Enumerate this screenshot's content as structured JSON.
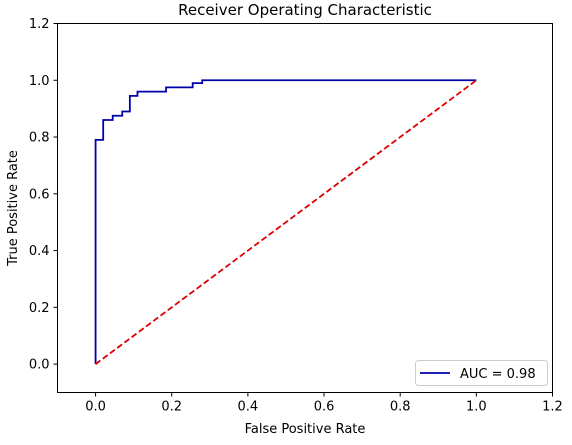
{
  "chart_data": {
    "type": "line",
    "title": "Receiver Operating Characteristic",
    "xlabel": "False Positive Rate",
    "ylabel": "True Positive Rate",
    "xlim": [
      -0.1,
      1.2
    ],
    "ylim": [
      -0.1,
      1.2
    ],
    "xticks": [
      0.0,
      0.2,
      0.4,
      0.6,
      0.8,
      1.0,
      1.2
    ],
    "yticks": [
      0.0,
      0.2,
      0.4,
      0.6,
      0.8,
      1.0,
      1.2
    ],
    "xtick_labels": [
      "0.0",
      "0.2",
      "0.4",
      "0.6",
      "0.8",
      "1.0",
      "1.2"
    ],
    "ytick_labels": [
      "0.0",
      "0.2",
      "0.4",
      "0.6",
      "0.8",
      "1.0",
      "1.2"
    ],
    "grid": false,
    "legend_position": "lower-right",
    "series": [
      {
        "name": "AUC = 0.98",
        "color": "#0000aa",
        "style": "solid",
        "step": true,
        "x": [
          0.0,
          0.0,
          0.02,
          0.02,
          0.045,
          0.045,
          0.07,
          0.07,
          0.09,
          0.09,
          0.11,
          0.11,
          0.185,
          0.185,
          0.255,
          0.255,
          0.28,
          0.28,
          1.0
        ],
        "y": [
          0.0,
          0.79,
          0.79,
          0.86,
          0.86,
          0.875,
          0.875,
          0.89,
          0.89,
          0.945,
          0.945,
          0.96,
          0.96,
          0.975,
          0.975,
          0.99,
          0.99,
          1.0,
          1.0
        ]
      },
      {
        "name": "",
        "color": "#dd0000",
        "style": "dashed",
        "step": false,
        "x": [
          0.0,
          1.0
        ],
        "y": [
          0.0,
          1.0
        ]
      }
    ]
  }
}
